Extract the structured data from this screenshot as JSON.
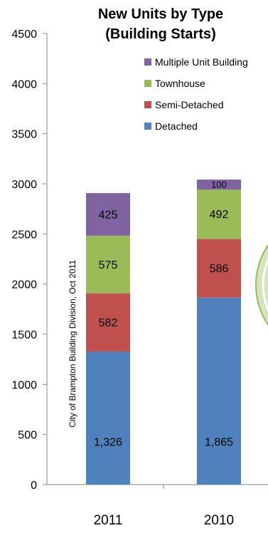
{
  "chart_data": {
    "type": "bar",
    "stacked": true,
    "title": "New Units by Type",
    "subtitle": "(Building Starts)",
    "categories": [
      "2011",
      "2010"
    ],
    "ylim": [
      0,
      4500
    ],
    "yticks": [
      0,
      500,
      1000,
      1500,
      2000,
      2500,
      3000,
      3500,
      4000,
      4500
    ],
    "grid": false,
    "legend_position": "top-right",
    "series": [
      {
        "name": "Detached",
        "color": "#4f81bd",
        "values": [
          1326,
          1865
        ],
        "labels": [
          "1,326",
          "1,865"
        ]
      },
      {
        "name": "Semi-Detached",
        "color": "#c0504d",
        "values": [
          582,
          586
        ],
        "labels": [
          "582",
          "586"
        ]
      },
      {
        "name": "Townhouse",
        "color": "#9bbb59",
        "values": [
          575,
          492
        ],
        "labels": [
          "575",
          "492"
        ]
      },
      {
        "name": "Multiple Unit Building",
        "color": "#8064a2",
        "values": [
          425,
          100
        ],
        "labels": [
          "425",
          "100"
        ]
      }
    ],
    "annotation": "City of Brampton Building Division, Oct 2011"
  }
}
